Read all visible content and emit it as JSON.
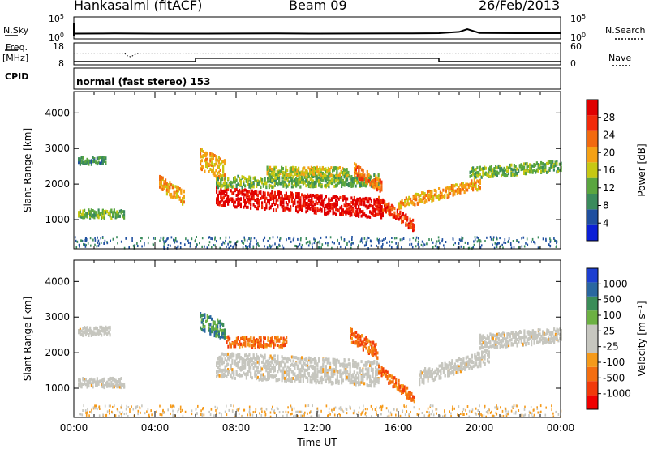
{
  "header": {
    "station": "Hankasalmi (fitACF)",
    "beam": "Beam 09",
    "date": "26/Feb/2013"
  },
  "side_labels": {
    "nsky": "N.Sky",
    "nsearch": "N.Search",
    "freq": "Freq.",
    "freq_unit": "[MHz]",
    "nave": "Nave",
    "cpid": "CPID",
    "cpid_value": "normal (fast stereo) 153"
  },
  "colors": {
    "power": [
      "#0b1fd6",
      "#1f4f9f",
      "#3a8b5c",
      "#5aa63f",
      "#c7c813",
      "#f5a114",
      "#f26a0f",
      "#f22a0a",
      "#e00000"
    ],
    "velocity": [
      "#f00000",
      "#f23a0a",
      "#f46e10",
      "#f59a1a",
      "#c6c6bf",
      "#c6c6bf",
      "#6cb142",
      "#3b8d58",
      "#2a67a0",
      "#1d3fd1"
    ]
  },
  "chart_data": [
    {
      "type": "line",
      "name": "noise",
      "ytick_labels": [
        "10^5",
        "10^0"
      ],
      "ytick_labels_right": [
        "10^5",
        "10^0"
      ],
      "x": [
        0,
        2,
        4,
        6,
        8,
        10,
        12,
        14,
        16,
        18,
        19,
        19.4,
        20,
        22,
        24
      ],
      "values": [
        1.2,
        1.25,
        1.2,
        1.2,
        1.22,
        1.25,
        1.2,
        1.22,
        1.25,
        1.3,
        1.6,
        2.2,
        1.35,
        1.3,
        1.3
      ]
    },
    {
      "type": "line",
      "name": "frequency-nave",
      "ytick_labels": [
        "18",
        "8"
      ],
      "ytick_labels_right": [
        "60",
        "0"
      ],
      "freq_x": [
        0,
        6,
        6,
        18,
        18,
        24
      ],
      "freq_y": [
        9.5,
        9.5,
        11,
        11,
        9.5,
        9.5
      ],
      "nave_x": [
        0,
        2.5,
        2.6,
        2.8,
        3.0,
        3.2,
        24
      ],
      "nave_y": [
        32,
        32,
        26,
        22,
        28,
        32,
        32
      ]
    },
    {
      "type": "heatmap",
      "name": "power",
      "ylabel": "Slant Range [km]",
      "ytick_labels": [
        "1000",
        "2000",
        "3000",
        "4000"
      ],
      "xlim": [
        0,
        24
      ],
      "ylim": [
        180,
        4600
      ],
      "colorbar_label": "Power [dB]",
      "colorbar_ticks": [
        "4",
        "8",
        "12",
        "16",
        "20",
        "24",
        "28"
      ],
      "bands": [
        {
          "from": 0.2,
          "to": 2.5,
          "center": [
            1150,
            1150
          ],
          "width": 120,
          "level": 3
        },
        {
          "from": 0.2,
          "to": 1.6,
          "center": [
            2650,
            2650
          ],
          "width": 100,
          "level": 2
        },
        {
          "from": 4.2,
          "to": 5.4,
          "center": [
            2050,
            1600
          ],
          "width": 200,
          "level": 5
        },
        {
          "from": 6.2,
          "to": 7.4,
          "center": [
            2700,
            2400
          ],
          "width": 300,
          "level": 5
        },
        {
          "from": 7.0,
          "to": 15.2,
          "center": [
            1650,
            1300
          ],
          "width": 260,
          "level": 8
        },
        {
          "from": 7.0,
          "to": 15.0,
          "center": [
            2050,
            2100
          ],
          "width": 160,
          "level": 3
        },
        {
          "from": 9.5,
          "to": 13.5,
          "center": [
            2350,
            2350
          ],
          "width": 120,
          "level": 4
        },
        {
          "from": 13.8,
          "to": 15.2,
          "center": [
            2400,
            1900
          ],
          "width": 180,
          "level": 6
        },
        {
          "from": 15.0,
          "to": 16.8,
          "center": [
            1500,
            800
          ],
          "width": 160,
          "level": 7
        },
        {
          "from": 16.0,
          "to": 20.0,
          "center": [
            1450,
            2000
          ],
          "width": 150,
          "level": 5
        },
        {
          "from": 19.5,
          "to": 24,
          "center": [
            2300,
            2500
          ],
          "width": 150,
          "level": 3
        }
      ]
    },
    {
      "type": "heatmap",
      "name": "velocity",
      "ylabel": "Slant Range [km]",
      "xlabel": "Time UT",
      "ytick_labels": [
        "1000",
        "2000",
        "3000",
        "4000"
      ],
      "xtick_labels": [
        "00:00",
        "04:00",
        "08:00",
        "12:00",
        "16:00",
        "20:00",
        "00:00"
      ],
      "xlim": [
        0,
        24
      ],
      "ylim": [
        180,
        4600
      ],
      "colorbar_label": "Velocity [m s⁻¹]",
      "colorbar_ticks": [
        "-1000",
        "-500",
        "-100",
        "-25",
        "25",
        "100",
        "500",
        "1000"
      ],
      "bands": [
        {
          "from": 0.2,
          "to": 2.5,
          "center": [
            1150,
            1150
          ],
          "width": 130,
          "level": 4
        },
        {
          "from": 0.2,
          "to": 1.8,
          "center": [
            2600,
            2600
          ],
          "width": 120,
          "level": 4
        },
        {
          "from": 6.2,
          "to": 7.4,
          "center": [
            2900,
            2600
          ],
          "width": 250,
          "level": 7
        },
        {
          "from": 7.5,
          "to": 10.5,
          "center": [
            2300,
            2300
          ],
          "width": 150,
          "level": 2
        },
        {
          "from": 7.0,
          "to": 15.0,
          "center": [
            1650,
            1400
          ],
          "width": 350,
          "level": 4
        },
        {
          "from": 13.6,
          "to": 15.0,
          "center": [
            2500,
            2000
          ],
          "width": 200,
          "level": 2
        },
        {
          "from": 15.0,
          "to": 16.8,
          "center": [
            1500,
            700
          ],
          "width": 150,
          "level": 2
        },
        {
          "from": 17.0,
          "to": 20.5,
          "center": [
            1300,
            1900
          ],
          "width": 200,
          "level": 4
        },
        {
          "from": 20.0,
          "to": 24,
          "center": [
            2300,
            2500
          ],
          "width": 200,
          "level": 4
        }
      ]
    }
  ]
}
